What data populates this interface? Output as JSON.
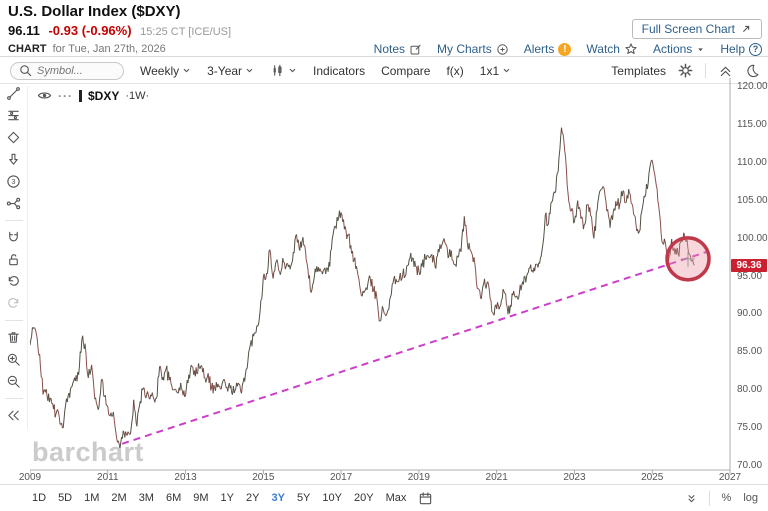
{
  "header": {
    "title": "U.S. Dollar Index ($DXY)",
    "last_price": "96.11",
    "change": "-0.93 (-0.96%)",
    "quote_time": "15:25 CT [ICE/US]",
    "chart_label": "CHART",
    "chart_date": "for Tue, Jan 27th, 2026",
    "fullscreen_label": "Full Screen Chart",
    "links": [
      {
        "label": "Notes",
        "icon": "pencil"
      },
      {
        "label": "My Charts",
        "icon": "plus-circle"
      },
      {
        "label": "Alerts",
        "icon": "alert"
      },
      {
        "label": "Watch",
        "icon": "star"
      },
      {
        "label": "Actions",
        "icon": "caret-down"
      },
      {
        "label": "Help",
        "icon": "help"
      }
    ]
  },
  "toolbar": {
    "symbol_placeholder": "Symbol...",
    "period": "Weekly",
    "range": "3-Year",
    "indicators": "Indicators",
    "compare": "Compare",
    "fx": "f(x)",
    "grid": "1x1",
    "templates": "Templates"
  },
  "left_toolbar": [
    "trendline",
    "fibonacci",
    "shapes",
    "arrow-down",
    "annotation-3",
    "measure",
    "sep",
    "magnet",
    "unlock",
    "undo",
    "redo",
    "sep",
    "trash",
    "zoom-in",
    "zoom-out",
    "sep",
    "collapse-left"
  ],
  "legend": {
    "symbol": "$DXY",
    "interval": "·1W·",
    "dots": "···"
  },
  "watermark": "barchart",
  "price_badge": "96.36",
  "bottom_bar": {
    "ranges": [
      "1D",
      "5D",
      "1M",
      "2M",
      "3M",
      "6M",
      "9M",
      "1Y",
      "2Y",
      "3Y",
      "5Y",
      "10Y",
      "20Y",
      "Max"
    ],
    "active": "3Y",
    "percent": "%",
    "log": "log"
  },
  "colors": {
    "up_candle": "#4d5243",
    "down_candle": "#8a4f4a",
    "trendline": "#cc3ecc",
    "circle_stroke": "#c0394b",
    "circle_fill": "rgba(235,150,160,0.38)",
    "badge_bg": "#cb2030",
    "link_blue": "#2d5f8a",
    "active_range": "#3b7dd8"
  },
  "chart_data": {
    "type": "candlestick",
    "title": "$DXY ·1W· U.S. Dollar Index weekly",
    "xlim": [
      2009,
      2027
    ],
    "ylim": [
      70,
      120
    ],
    "y_ticks": [
      120,
      115,
      110,
      105,
      100,
      95,
      90,
      85,
      80,
      75,
      70
    ],
    "x_ticks": [
      2009,
      2011,
      2013,
      2015,
      2017,
      2019,
      2021,
      2023,
      2025,
      2027
    ],
    "grid": false,
    "legend_position": "top-left",
    "series_start_year": 2009,
    "series_interval_years": 0.083333,
    "series_values": [
      85.8,
      88.0,
      87.2,
      84.6,
      79.3,
      80.0,
      78.3,
      78.1,
      76.7,
      76.4,
      74.9,
      77.9,
      79.5,
      80.4,
      81.1,
      81.9,
      86.6,
      86.0,
      81.5,
      83.2,
      78.7,
      77.3,
      81.2,
      79.0,
      77.7,
      76.9,
      75.9,
      73.0,
      72.9,
      74.3,
      73.9,
      74.1,
      78.6,
      75.1,
      78.4,
      80.2,
      79.3,
      78.7,
      79.0,
      78.8,
      83.0,
      81.6,
      82.7,
      81.2,
      79.9,
      80.0,
      80.2,
      79.8,
      79.2,
      81.9,
      83.0,
      81.7,
      83.4,
      83.1,
      81.5,
      82.1,
      80.2,
      80.2,
      80.7,
      80.0,
      81.3,
      79.7,
      80.5,
      79.5,
      80.4,
      79.8,
      81.5,
      82.7,
      85.9,
      87.0,
      88.4,
      90.3,
      94.8,
      95.3,
      98.4,
      94.6,
      96.9,
      95.5,
      97.3,
      96.1,
      96.4,
      96.9,
      100.2,
      98.7,
      99.6,
      98.2,
      94.6,
      93.1,
      95.9,
      96.1,
      95.5,
      96.0,
      95.5,
      98.4,
      101.5,
      102.2,
      103.3,
      101.1,
      100.4,
      99.0,
      97.0,
      95.6,
      92.9,
      92.7,
      93.1,
      94.6,
      93.0,
      92.1,
      89.0,
      90.6,
      89.8,
      91.8,
      94.0,
      94.5,
      94.6,
      95.1,
      95.1,
      97.1,
      97.3,
      96.2,
      95.6,
      96.2,
      97.3,
      97.5,
      97.8,
      96.1,
      98.5,
      98.9,
      99.4,
      97.3,
      98.3,
      96.4,
      97.4,
      98.1,
      102.8,
      99.0,
      98.3,
      97.4,
      93.3,
      92.1,
      93.9,
      94.0,
      91.9,
      89.9,
      90.6,
      90.9,
      93.2,
      91.3,
      90.0,
      92.4,
      92.2,
      92.6,
      94.2,
      94.1,
      96.0,
      95.7,
      96.5,
      96.7,
      98.3,
      103.0,
      101.8,
      104.7,
      105.9,
      108.7,
      114.5,
      111.5,
      105.9,
      103.5,
      102.1,
      104.9,
      102.5,
      101.7,
      104.3,
      102.9,
      99.9,
      103.6,
      106.2,
      106.7,
      103.5,
      101.3,
      103.4,
      104.2,
      104.5,
      106.2,
      104.7,
      105.9,
      104.1,
      101.7,
      100.8,
      104.0,
      105.7,
      108.5,
      110.2,
      107.6,
      104.2,
      99.5,
      99.4,
      96.9,
      99.8,
      97.8,
      97.9,
      99.7,
      100.3,
      98.6,
      96.9,
      96.36
    ],
    "noise_amplitude": 0.85,
    "trendline": {
      "x1": 2011.37,
      "y1": 72.8,
      "x2": 2026.45,
      "y2": 98.2,
      "style": "dashed"
    },
    "annotation_circle": {
      "x": 2025.92,
      "y": 97.2,
      "radius_px": 21
    },
    "last_price": 96.36
  }
}
